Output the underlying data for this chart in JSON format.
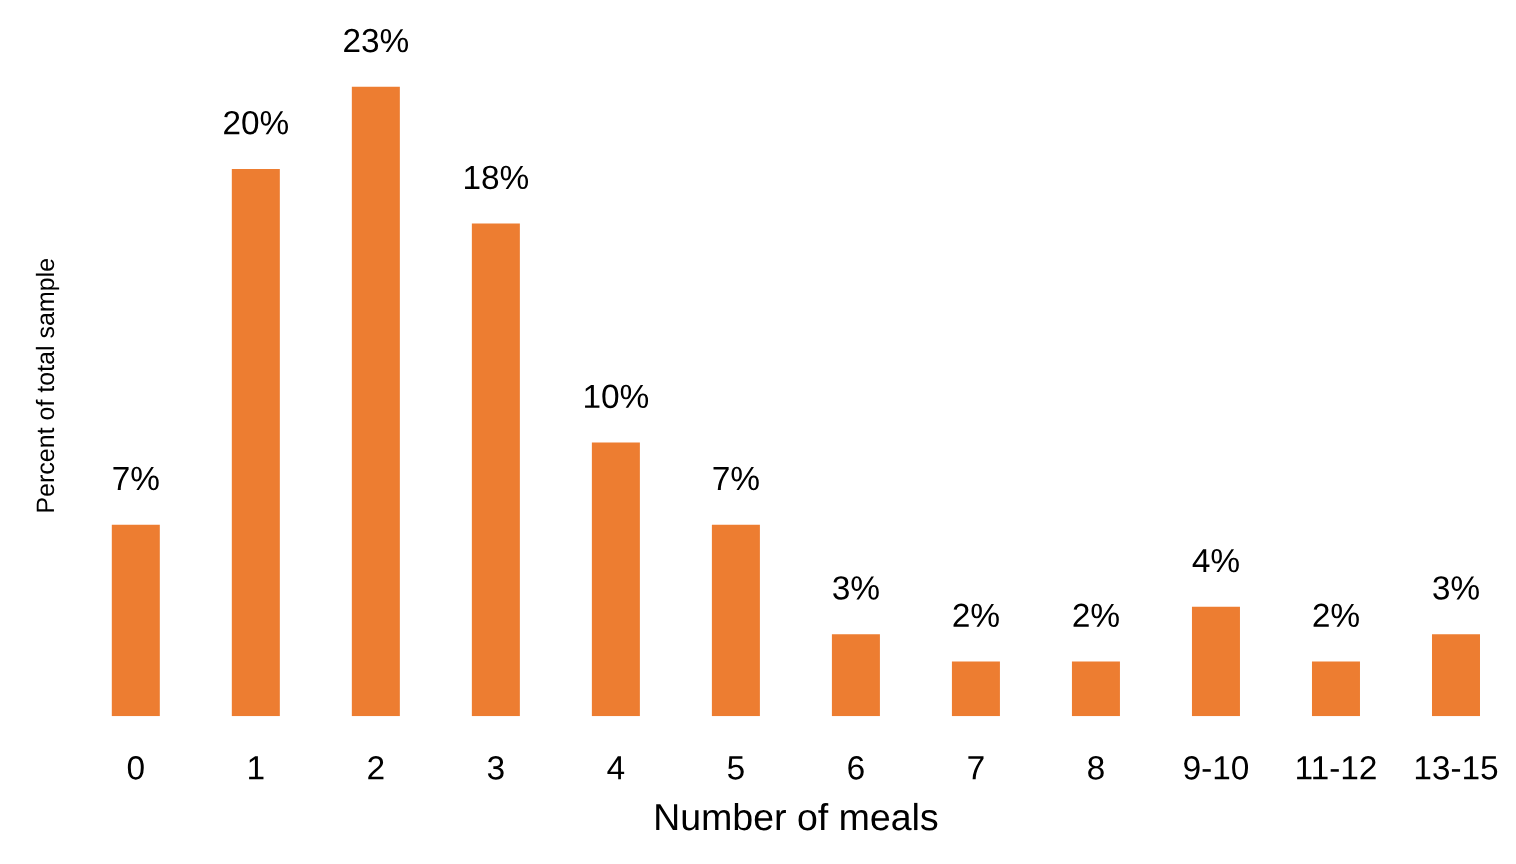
{
  "chart_data": {
    "type": "bar",
    "xlabel": "Number of meals",
    "ylabel": "Percent of total sample",
    "categories": [
      "0",
      "1",
      "2",
      "3",
      "4",
      "5",
      "6",
      "7",
      "8",
      "9-10",
      "11-12",
      "13-15"
    ],
    "values": [
      7,
      20,
      23,
      18,
      10,
      7,
      3,
      2,
      2,
      4,
      2,
      3
    ],
    "value_labels": [
      "7%",
      "20%",
      "23%",
      "18%",
      "10%",
      "7%",
      "3%",
      "2%",
      "2%",
      "4%",
      "2%",
      "3%"
    ],
    "color": "#ed7d31",
    "tick_labels": "x",
    "grid": false,
    "legend": false
  }
}
